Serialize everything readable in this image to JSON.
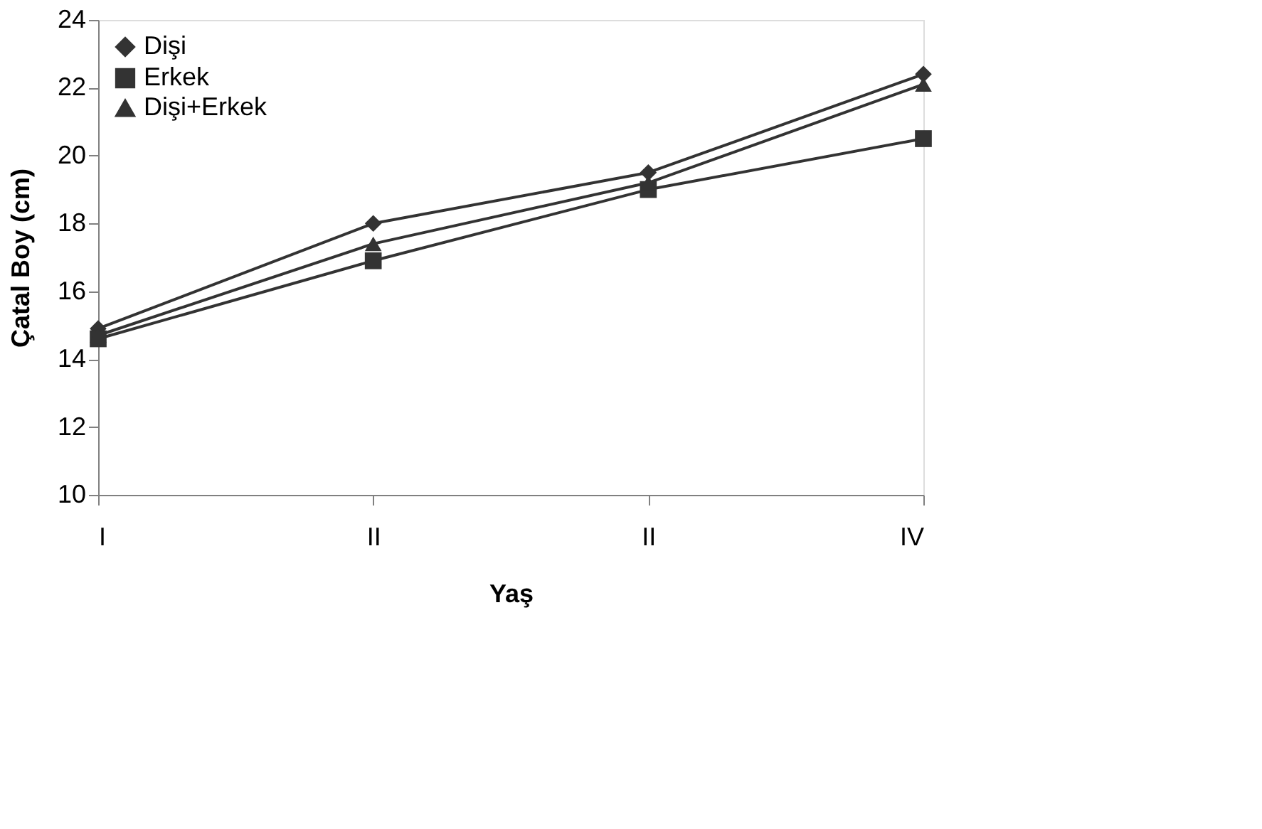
{
  "chart_data": {
    "type": "line",
    "xlabel": "Yaş",
    "ylabel": "Çatal Boy (cm)",
    "categories": [
      "I",
      "II",
      "II",
      "IV"
    ],
    "ylim": [
      10,
      24
    ],
    "yticks": [
      10,
      12,
      14,
      16,
      18,
      20,
      22,
      24
    ],
    "grid": false,
    "legend": "top left",
    "line_style": "solid",
    "series": [
      {
        "name": "Dişi",
        "color": "#333333",
        "marker": "diamond",
        "values": [
          14.9,
          18.0,
          19.5,
          22.4
        ]
      },
      {
        "name": "Erkek",
        "color": "#333333",
        "marker": "square",
        "values": [
          14.6,
          16.9,
          19.0,
          20.5
        ]
      },
      {
        "name": "Dişi+Erkek",
        "color": "#333333",
        "marker": "triangle",
        "values": [
          14.7,
          17.4,
          19.2,
          22.1
        ]
      }
    ]
  }
}
